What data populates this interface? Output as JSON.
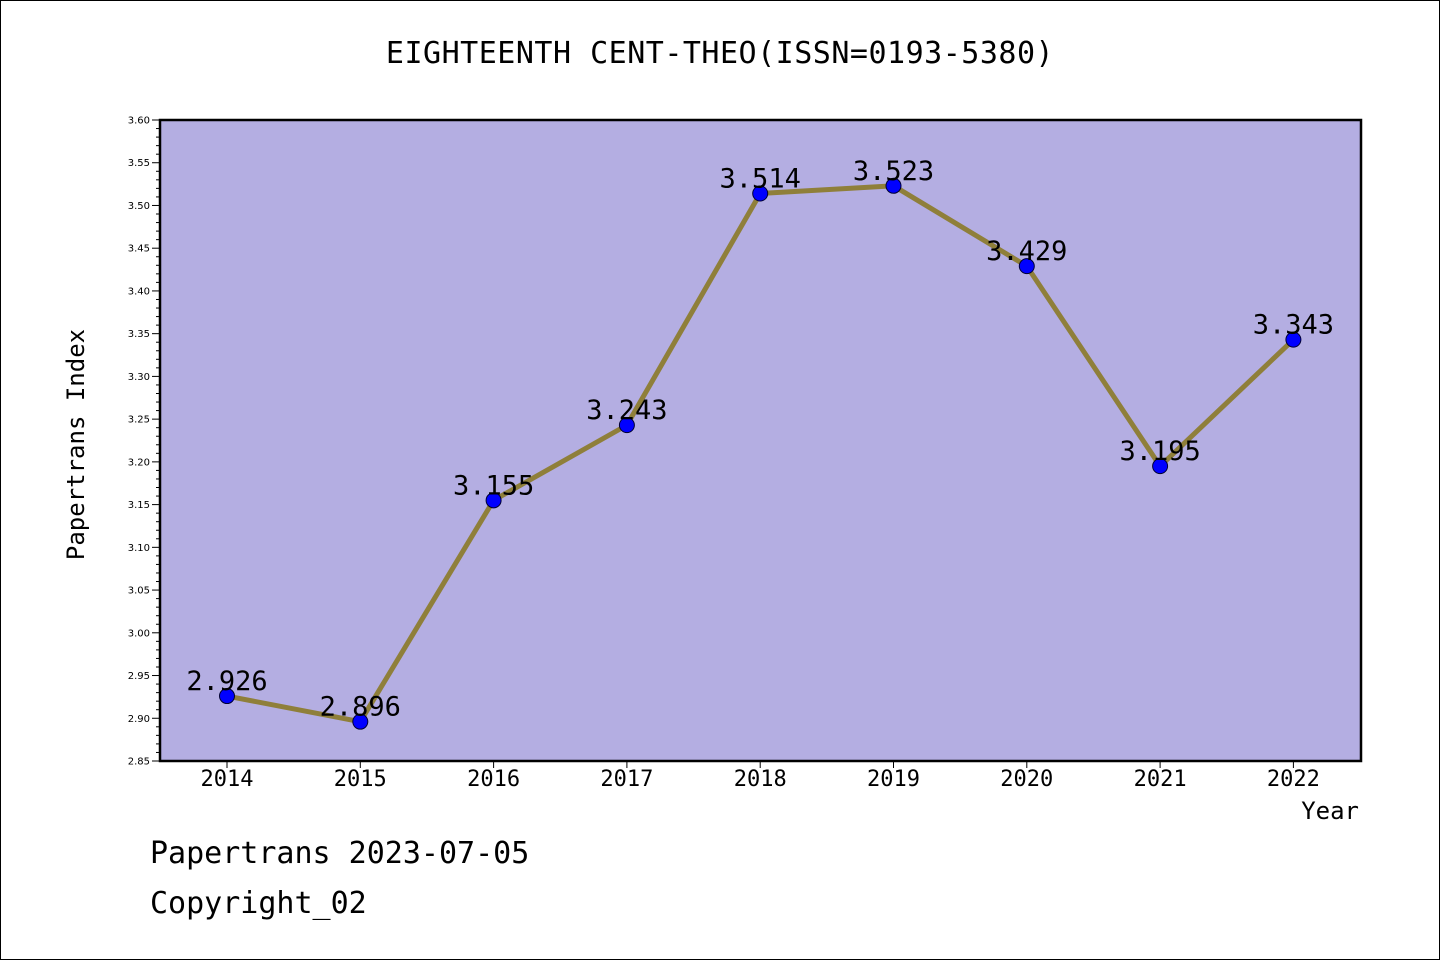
{
  "chart_data": {
    "type": "line",
    "title": "EIGHTEENTH CENT-THEO(ISSN=0193-5380)",
    "xlabel": "Year",
    "ylabel": "Papertrans Index",
    "categories": [
      "2014",
      "2015",
      "2016",
      "2017",
      "2018",
      "2019",
      "2020",
      "2021",
      "2022"
    ],
    "series": [
      {
        "values": [
          2.926,
          2.896,
          3.155,
          3.243,
          3.514,
          3.523,
          3.429,
          3.195,
          3.343
        ],
        "labels": [
          "2.926",
          "2.896",
          "3.155",
          "3.243",
          "3.514",
          "3.523",
          "3.429",
          "3.195",
          "3.343"
        ]
      }
    ],
    "ylim": [
      2.85,
      3.6
    ],
    "yticks": [
      "2.85",
      "2.90",
      "2.95",
      "3.00",
      "3.05",
      "3.10",
      "3.15",
      "3.20",
      "3.25",
      "3.30",
      "3.35",
      "3.40",
      "3.45",
      "3.50",
      "3.55",
      "3.60"
    ],
    "grid": false,
    "legend": "none",
    "colors": {
      "plot_background": "#b4aee2",
      "line": "#8f7f3a",
      "marker": "#0000ff"
    }
  },
  "footer": {
    "line1": "Papertrans 2023-07-05",
    "line2": "Copyright_02"
  }
}
